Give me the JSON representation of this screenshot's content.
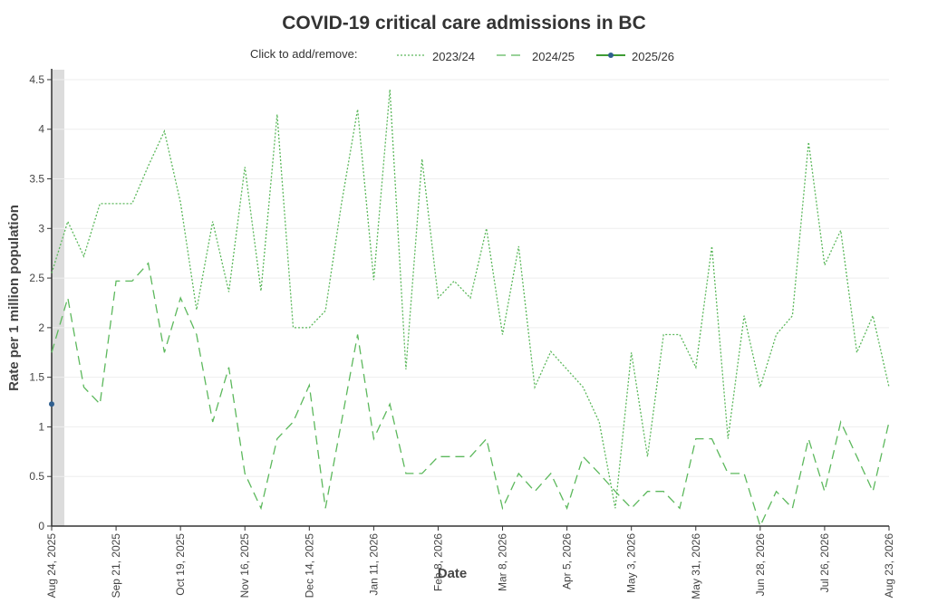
{
  "chart_data": {
    "type": "line",
    "title": "COVID-19 critical care admissions in BC",
    "legend_prompt": "Click to add/remove:",
    "legend_position": "top",
    "xlabel": "Date",
    "ylabel": "Rate per 1 million population",
    "ylim": [
      0,
      4.6
    ],
    "y_ticks": [
      0,
      0.5,
      1,
      1.5,
      2,
      2.5,
      3,
      3.5,
      4,
      4.5
    ],
    "y_tick_labels": [
      "0",
      "0.5",
      "1",
      "1.5",
      "2",
      "2.5",
      "3",
      "3.5",
      "4",
      "4.5"
    ],
    "x_range": [
      "2025-08-24",
      "2026-08-23"
    ],
    "x_ticks": [
      "2025-08-24",
      "2025-09-21",
      "2025-10-19",
      "2025-11-16",
      "2025-12-14",
      "2026-01-11",
      "2026-02-08",
      "2026-03-08",
      "2026-04-05",
      "2026-05-03",
      "2026-05-31",
      "2026-06-28",
      "2026-07-26",
      "2026-08-23"
    ],
    "x_tick_labels": [
      "Aug 24, 2025",
      "Sep 21, 2025",
      "Oct 19, 2025",
      "Nov 16, 2025",
      "Dec 14, 2025",
      "Jan 11, 2026",
      "Feb 8, 2026",
      "Mar 8, 2026",
      "Apr 5, 2026",
      "May 3, 2026",
      "May 31, 2026",
      "Jun 28, 2026",
      "Jul 26, 2026",
      "Aug 23, 2026"
    ],
    "grid": true,
    "highlight_band": [
      "2025-08-24",
      "2025-08-27"
    ],
    "series": [
      {
        "name": "2023/24",
        "color": "#5cb85c",
        "style": "dotted",
        "dates": [
          "2025-08-24",
          "2025-08-31",
          "2025-09-07",
          "2025-09-14",
          "2025-09-21",
          "2025-09-28",
          "2025-10-05",
          "2025-10-12",
          "2025-10-19",
          "2025-10-26",
          "2025-11-02",
          "2025-11-09",
          "2025-11-16",
          "2025-11-23",
          "2025-11-30",
          "2025-12-07",
          "2025-12-14",
          "2025-12-21",
          "2025-12-28",
          "2026-01-04",
          "2026-01-11",
          "2026-01-18",
          "2026-01-25",
          "2026-02-01",
          "2026-02-08",
          "2026-02-15",
          "2026-02-22",
          "2026-03-01",
          "2026-03-08",
          "2026-03-15",
          "2026-03-22",
          "2026-03-29",
          "2026-04-05",
          "2026-04-12",
          "2026-04-19",
          "2026-04-26",
          "2026-05-03",
          "2026-05-10",
          "2026-05-17",
          "2026-05-24",
          "2026-05-31",
          "2026-06-07",
          "2026-06-14",
          "2026-06-21",
          "2026-06-28",
          "2026-07-05",
          "2026-07-12",
          "2026-07-19",
          "2026-07-26",
          "2026-08-02",
          "2026-08-09",
          "2026-08-16",
          "2026-08-23"
        ],
        "values": [
          2.55,
          3.07,
          2.72,
          3.25,
          3.25,
          3.25,
          3.63,
          3.98,
          3.26,
          2.18,
          3.07,
          2.36,
          3.62,
          2.37,
          4.15,
          2.0,
          2.0,
          2.17,
          3.25,
          4.2,
          2.48,
          4.4,
          1.58,
          3.7,
          2.3,
          2.47,
          2.3,
          3.0,
          1.93,
          2.82,
          1.4,
          1.76,
          1.58,
          1.4,
          1.05,
          0.18,
          1.75,
          0.7,
          1.93,
          1.93,
          1.6,
          2.82,
          0.88,
          2.12,
          1.4,
          1.93,
          2.12,
          3.87,
          2.63,
          2.98,
          1.75,
          2.12,
          1.4
        ]
      },
      {
        "name": "2024/25",
        "color": "#5cb85c",
        "style": "dashed",
        "dates": [
          "2025-08-24",
          "2025-08-31",
          "2025-09-07",
          "2025-09-14",
          "2025-09-21",
          "2025-09-28",
          "2025-10-05",
          "2025-10-12",
          "2025-10-19",
          "2025-10-26",
          "2025-11-02",
          "2025-11-09",
          "2025-11-16",
          "2025-11-23",
          "2025-11-30",
          "2025-12-07",
          "2025-12-14",
          "2025-12-21",
          "2025-12-28",
          "2026-01-04",
          "2026-01-11",
          "2026-01-18",
          "2026-01-25",
          "2026-02-01",
          "2026-02-08",
          "2026-02-15",
          "2026-02-22",
          "2026-03-01",
          "2026-03-08",
          "2026-03-15",
          "2026-03-22",
          "2026-03-29",
          "2026-04-05",
          "2026-04-12",
          "2026-04-19",
          "2026-04-26",
          "2026-05-03",
          "2026-05-10",
          "2026-05-17",
          "2026-05-24",
          "2026-05-31",
          "2026-06-07",
          "2026-06-14",
          "2026-06-21",
          "2026-06-28",
          "2026-07-05",
          "2026-07-12",
          "2026-07-19",
          "2026-07-26",
          "2026-08-02",
          "2026-08-09",
          "2026-08-16",
          "2026-08-23"
        ],
        "values": [
          1.75,
          2.3,
          1.4,
          1.23,
          2.47,
          2.47,
          2.65,
          1.75,
          2.3,
          1.93,
          1.05,
          1.6,
          0.53,
          0.18,
          0.88,
          1.05,
          1.42,
          0.18,
          1.05,
          1.93,
          0.88,
          1.23,
          0.53,
          0.53,
          0.7,
          0.7,
          0.7,
          0.88,
          0.18,
          0.53,
          0.35,
          0.53,
          0.18,
          0.7,
          0.53,
          0.35,
          0.18,
          0.35,
          0.35,
          0.18,
          0.88,
          0.88,
          0.53,
          0.53,
          0.0,
          0.35,
          0.18,
          0.88,
          0.35,
          1.05,
          0.7,
          0.35,
          1.05
        ]
      },
      {
        "name": "2025/26",
        "color": "#3f9c35",
        "marker_color": "#2f5f8f",
        "style": "solid",
        "dates": [
          "2025-08-24"
        ],
        "values": [
          1.23
        ]
      }
    ]
  }
}
